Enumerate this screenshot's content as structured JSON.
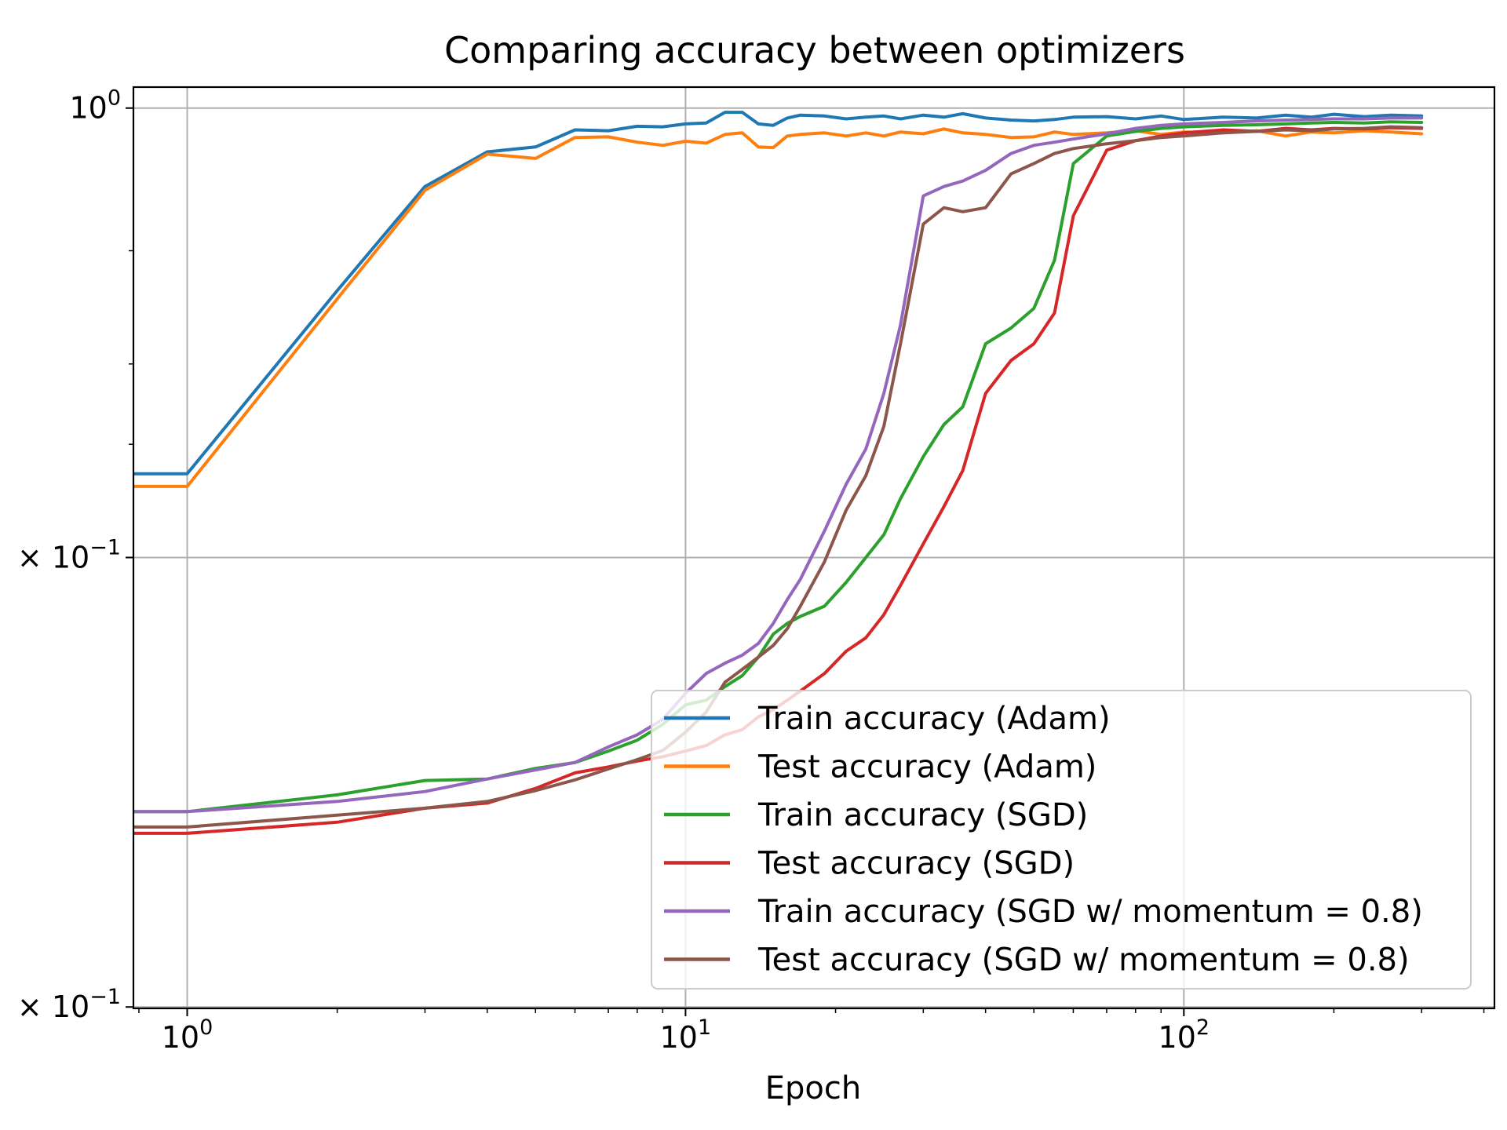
{
  "chart_data": {
    "type": "line",
    "title": "Comparing accuracy between optimizers",
    "xlabel": "Epoch",
    "ylabel": "",
    "x_scale": "log",
    "y_scale": "log",
    "xlim": [
      0.78,
      420
    ],
    "ylim": [
      0.0398,
      1.078
    ],
    "grid": true,
    "legend_position": "lower right",
    "x_ticks": [
      {
        "value": 1,
        "base": "10",
        "exp": "0"
      },
      {
        "value": 10,
        "base": "10",
        "exp": "1"
      },
      {
        "value": 100,
        "base": "10",
        "exp": "2"
      }
    ],
    "y_ticks": [
      {
        "value": 1.0,
        "prefix": "",
        "base": "10",
        "exp": "0"
      },
      {
        "value": 0.2,
        "prefix": "× ",
        "base": "10",
        "exp": "−1"
      },
      {
        "value": 0.04,
        "prefix": "× ",
        "base": "10",
        "exp": "−1"
      }
    ],
    "series": [
      {
        "name": "Train accuracy (Adam)",
        "color": "#1f77b4",
        "points": [
          [
            0.5,
            0.27
          ],
          [
            1,
            0.27
          ],
          [
            2,
            0.52
          ],
          [
            3,
            0.755
          ],
          [
            4,
            0.855
          ],
          [
            5,
            0.87
          ],
          [
            6,
            0.925
          ],
          [
            7,
            0.922
          ],
          [
            8,
            0.937
          ],
          [
            9,
            0.935
          ],
          [
            10,
            0.945
          ],
          [
            11,
            0.948
          ],
          [
            12,
            0.985
          ],
          [
            13,
            0.985
          ],
          [
            14,
            0.945
          ],
          [
            15,
            0.94
          ],
          [
            16,
            0.965
          ],
          [
            17,
            0.975
          ],
          [
            19,
            0.972
          ],
          [
            21,
            0.962
          ],
          [
            23,
            0.968
          ],
          [
            25,
            0.972
          ],
          [
            27,
            0.962
          ],
          [
            30,
            0.975
          ],
          [
            33,
            0.968
          ],
          [
            36,
            0.98
          ],
          [
            40,
            0.965
          ],
          [
            45,
            0.958
          ],
          [
            50,
            0.955
          ],
          [
            55,
            0.96
          ],
          [
            60,
            0.968
          ],
          [
            70,
            0.97
          ],
          [
            80,
            0.962
          ],
          [
            90,
            0.972
          ],
          [
            100,
            0.96
          ],
          [
            120,
            0.968
          ],
          [
            140,
            0.965
          ],
          [
            160,
            0.975
          ],
          [
            180,
            0.968
          ],
          [
            200,
            0.978
          ],
          [
            230,
            0.97
          ],
          [
            260,
            0.975
          ],
          [
            300,
            0.972
          ]
        ]
      },
      {
        "name": "Test accuracy (Adam)",
        "color": "#ff7f0e",
        "points": [
          [
            0.5,
            0.258
          ],
          [
            1,
            0.258
          ],
          [
            2,
            0.505
          ],
          [
            3,
            0.745
          ],
          [
            4,
            0.848
          ],
          [
            5,
            0.835
          ],
          [
            6,
            0.9
          ],
          [
            7,
            0.902
          ],
          [
            8,
            0.885
          ],
          [
            9,
            0.875
          ],
          [
            10,
            0.888
          ],
          [
            11,
            0.882
          ],
          [
            12,
            0.91
          ],
          [
            13,
            0.915
          ],
          [
            14,
            0.87
          ],
          [
            15,
            0.868
          ],
          [
            16,
            0.905
          ],
          [
            17,
            0.91
          ],
          [
            19,
            0.915
          ],
          [
            21,
            0.905
          ],
          [
            23,
            0.915
          ],
          [
            25,
            0.905
          ],
          [
            27,
            0.918
          ],
          [
            30,
            0.912
          ],
          [
            33,
            0.928
          ],
          [
            36,
            0.915
          ],
          [
            40,
            0.91
          ],
          [
            45,
            0.9
          ],
          [
            50,
            0.902
          ],
          [
            55,
            0.918
          ],
          [
            60,
            0.91
          ],
          [
            70,
            0.915
          ],
          [
            80,
            0.922
          ],
          [
            90,
            0.91
          ],
          [
            100,
            0.918
          ],
          [
            120,
            0.915
          ],
          [
            140,
            0.922
          ],
          [
            160,
            0.905
          ],
          [
            180,
            0.918
          ],
          [
            200,
            0.915
          ],
          [
            230,
            0.922
          ],
          [
            260,
            0.918
          ],
          [
            300,
            0.912
          ]
        ]
      },
      {
        "name": "Train accuracy (SGD)",
        "color": "#2ca02c",
        "points": [
          [
            0.5,
            0.0805
          ],
          [
            1,
            0.0805
          ],
          [
            2,
            0.0855
          ],
          [
            3,
            0.09
          ],
          [
            4,
            0.0905
          ],
          [
            5,
            0.094
          ],
          [
            6,
            0.096
          ],
          [
            7,
            0.1
          ],
          [
            8,
            0.104
          ],
          [
            9,
            0.11
          ],
          [
            10,
            0.118
          ],
          [
            11,
            0.12
          ],
          [
            12,
            0.126
          ],
          [
            13,
            0.131
          ],
          [
            14,
            0.14
          ],
          [
            15,
            0.152
          ],
          [
            16,
            0.158
          ],
          [
            17,
            0.162
          ],
          [
            19,
            0.168
          ],
          [
            21,
            0.183
          ],
          [
            23,
            0.2
          ],
          [
            25,
            0.217
          ],
          [
            27,
            0.247
          ],
          [
            30,
            0.287
          ],
          [
            33,
            0.322
          ],
          [
            36,
            0.343
          ],
          [
            40,
            0.43
          ],
          [
            45,
            0.455
          ],
          [
            50,
            0.488
          ],
          [
            55,
            0.58
          ],
          [
            60,
            0.82
          ],
          [
            70,
            0.905
          ],
          [
            80,
            0.92
          ],
          [
            90,
            0.93
          ],
          [
            100,
            0.935
          ],
          [
            120,
            0.94
          ],
          [
            140,
            0.942
          ],
          [
            160,
            0.945
          ],
          [
            180,
            0.948
          ],
          [
            200,
            0.95
          ],
          [
            230,
            0.948
          ],
          [
            260,
            0.952
          ],
          [
            300,
            0.95
          ]
        ]
      },
      {
        "name": "Test accuracy (SGD)",
        "color": "#d62728",
        "points": [
          [
            0.5,
            0.0745
          ],
          [
            1,
            0.0745
          ],
          [
            2,
            0.0775
          ],
          [
            3,
            0.0815
          ],
          [
            4,
            0.083
          ],
          [
            5,
            0.0875
          ],
          [
            6,
            0.0925
          ],
          [
            7,
            0.0945
          ],
          [
            8,
            0.0965
          ],
          [
            9,
            0.098
          ],
          [
            10,
            0.1
          ],
          [
            11,
            0.102
          ],
          [
            12,
            0.106
          ],
          [
            13,
            0.108
          ],
          [
            14,
            0.113
          ],
          [
            15,
            0.116
          ],
          [
            16,
            0.12
          ],
          [
            17,
            0.124
          ],
          [
            19,
            0.132
          ],
          [
            21,
            0.143
          ],
          [
            23,
            0.15
          ],
          [
            25,
            0.163
          ],
          [
            27,
            0.181
          ],
          [
            30,
            0.21
          ],
          [
            33,
            0.24
          ],
          [
            36,
            0.273
          ],
          [
            40,
            0.36
          ],
          [
            45,
            0.405
          ],
          [
            50,
            0.43
          ],
          [
            55,
            0.48
          ],
          [
            60,
            0.68
          ],
          [
            70,
            0.86
          ],
          [
            80,
            0.89
          ],
          [
            90,
            0.905
          ],
          [
            100,
            0.915
          ],
          [
            120,
            0.925
          ],
          [
            140,
            0.92
          ],
          [
            160,
            0.93
          ],
          [
            180,
            0.925
          ],
          [
            200,
            0.93
          ],
          [
            230,
            0.928
          ],
          [
            260,
            0.932
          ],
          [
            300,
            0.93
          ]
        ]
      },
      {
        "name": "Train accuracy (SGD w/ momentum = 0.8)",
        "color": "#9467bd",
        "points": [
          [
            0.5,
            0.0805
          ],
          [
            1,
            0.0805
          ],
          [
            2,
            0.0835
          ],
          [
            3,
            0.0865
          ],
          [
            4,
            0.0905
          ],
          [
            5,
            0.0935
          ],
          [
            6,
            0.096
          ],
          [
            7,
            0.1015
          ],
          [
            8,
            0.106
          ],
          [
            9,
            0.112
          ],
          [
            10,
            0.123
          ],
          [
            11,
            0.132
          ],
          [
            12,
            0.137
          ],
          [
            13,
            0.141
          ],
          [
            14,
            0.147
          ],
          [
            15,
            0.158
          ],
          [
            16,
            0.172
          ],
          [
            17,
            0.185
          ],
          [
            19,
            0.22
          ],
          [
            21,
            0.26
          ],
          [
            23,
            0.295
          ],
          [
            25,
            0.36
          ],
          [
            27,
            0.46
          ],
          [
            30,
            0.73
          ],
          [
            33,
            0.755
          ],
          [
            36,
            0.77
          ],
          [
            40,
            0.8
          ],
          [
            45,
            0.85
          ],
          [
            50,
            0.875
          ],
          [
            55,
            0.885
          ],
          [
            60,
            0.895
          ],
          [
            70,
            0.912
          ],
          [
            80,
            0.93
          ],
          [
            90,
            0.94
          ],
          [
            100,
            0.945
          ],
          [
            120,
            0.95
          ],
          [
            140,
            0.955
          ],
          [
            160,
            0.958
          ],
          [
            180,
            0.96
          ],
          [
            200,
            0.962
          ],
          [
            230,
            0.962
          ],
          [
            260,
            0.965
          ],
          [
            300,
            0.965
          ]
        ]
      },
      {
        "name": "Test accuracy (SGD w/ momentum = 0.8)",
        "color": "#8c564b",
        "points": [
          [
            0.5,
            0.0762
          ],
          [
            1,
            0.0762
          ],
          [
            2,
            0.0795
          ],
          [
            3,
            0.0815
          ],
          [
            4,
            0.0835
          ],
          [
            5,
            0.0868
          ],
          [
            6,
            0.0902
          ],
          [
            7,
            0.0938
          ],
          [
            8,
            0.097
          ],
          [
            9,
            0.1002
          ],
          [
            10,
            0.107
          ],
          [
            11,
            0.115
          ],
          [
            12,
            0.128
          ],
          [
            13,
            0.134
          ],
          [
            14,
            0.14
          ],
          [
            15,
            0.146
          ],
          [
            16,
            0.155
          ],
          [
            17,
            0.168
          ],
          [
            19,
            0.197
          ],
          [
            21,
            0.237
          ],
          [
            23,
            0.268
          ],
          [
            25,
            0.32
          ],
          [
            27,
            0.43
          ],
          [
            30,
            0.66
          ],
          [
            33,
            0.7
          ],
          [
            36,
            0.69
          ],
          [
            40,
            0.7
          ],
          [
            45,
            0.79
          ],
          [
            50,
            0.82
          ],
          [
            55,
            0.85
          ],
          [
            60,
            0.865
          ],
          [
            70,
            0.88
          ],
          [
            80,
            0.89
          ],
          [
            90,
            0.9
          ],
          [
            100,
            0.905
          ],
          [
            120,
            0.915
          ],
          [
            140,
            0.92
          ],
          [
            160,
            0.925
          ],
          [
            180,
            0.922
          ],
          [
            200,
            0.928
          ],
          [
            230,
            0.93
          ],
          [
            260,
            0.935
          ],
          [
            300,
            0.932
          ]
        ]
      }
    ]
  }
}
